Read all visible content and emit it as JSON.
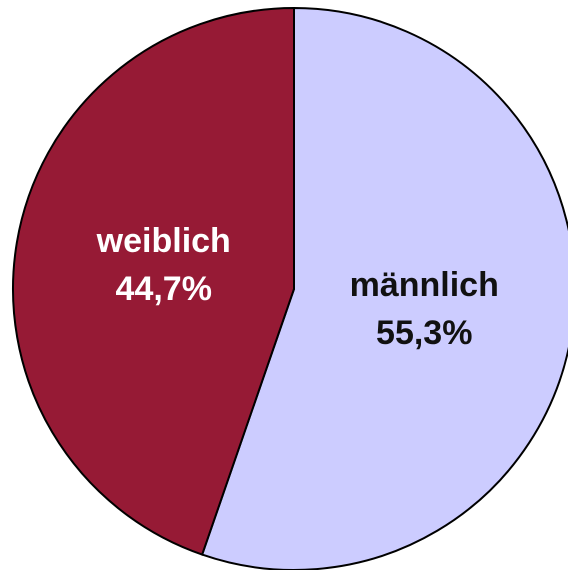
{
  "chart_data": {
    "type": "pie",
    "categories": [
      "männlich",
      "weiblich"
    ],
    "values": [
      55.3,
      44.7
    ],
    "value_labels": [
      "55,3%",
      "44,7%"
    ],
    "colors": [
      "#ccccff",
      "#961a35"
    ]
  }
}
